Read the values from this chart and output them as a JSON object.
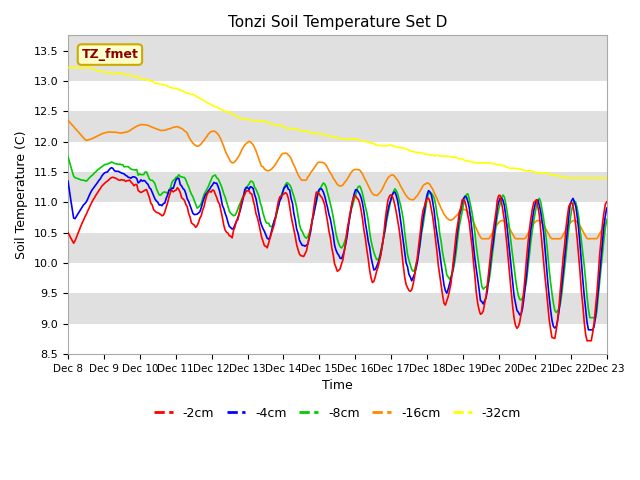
{
  "title": "Tonzi Soil Temperature Set D",
  "xlabel": "Time",
  "ylabel": "Soil Temperature (C)",
  "ylim": [
    8.5,
    13.75
  ],
  "xlim": [
    0,
    360
  ],
  "label_box_text": "TZ_fmet",
  "x_tick_labels": [
    "Dec 8",
    "Dec 9",
    "Dec 10",
    "Dec 11",
    "Dec 12",
    "Dec 13",
    "Dec 14",
    "Dec 15",
    "Dec 16",
    "Dec 17",
    "Dec 18",
    "Dec 19",
    "Dec 20",
    "Dec 21",
    "Dec 22",
    "Dec 23"
  ],
  "x_tick_positions": [
    0,
    24,
    48,
    72,
    96,
    120,
    144,
    168,
    192,
    216,
    240,
    264,
    288,
    312,
    336,
    360
  ],
  "yticks": [
    8.5,
    9.0,
    9.5,
    10.0,
    10.5,
    11.0,
    11.5,
    12.0,
    12.5,
    13.0,
    13.5
  ],
  "series_colors": [
    "#ff0000",
    "#0000ff",
    "#00cc00",
    "#ff8800",
    "#ffff00"
  ],
  "series_labels": [
    "-2cm",
    "-4cm",
    "-8cm",
    "-16cm",
    "-32cm"
  ],
  "axes_background": "#e0e0e0",
  "band_colors": [
    "#e0e0e0",
    "#ececec"
  ],
  "title_fontsize": 11
}
